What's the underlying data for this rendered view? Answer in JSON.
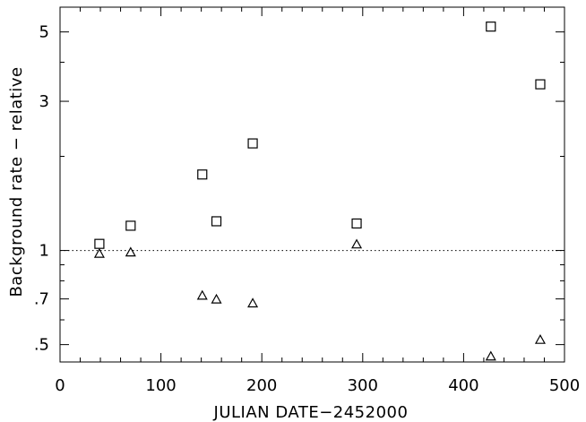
{
  "chart_data": {
    "type": "scatter",
    "title": "",
    "xlabel": "JULIAN DATE−2452000",
    "ylabel": "Background rate − relative",
    "xlim": [
      0,
      500
    ],
    "ylim": [
      0.44,
      6.0
    ],
    "yscale": "log",
    "grid": false,
    "x_ticks": [
      {
        "value": 0,
        "label": "0"
      },
      {
        "value": 100,
        "label": "100"
      },
      {
        "value": 200,
        "label": "200"
      },
      {
        "value": 300,
        "label": "300"
      },
      {
        "value": 400,
        "label": "400"
      },
      {
        "value": 500,
        "label": "500"
      }
    ],
    "y_ticks": [
      {
        "value": 0.5,
        "label": ".5"
      },
      {
        "value": 0.7,
        "label": ".7"
      },
      {
        "value": 1,
        "label": "1"
      },
      {
        "value": 3,
        "label": "3"
      },
      {
        "value": 5,
        "label": "5"
      }
    ],
    "reference_line": {
      "y": 1,
      "style": "dotted"
    },
    "series": [
      {
        "marker": "square",
        "points": [
          {
            "x": 39,
            "y": 1.05
          },
          {
            "x": 70,
            "y": 1.2
          },
          {
            "x": 141,
            "y": 1.75
          },
          {
            "x": 155,
            "y": 1.24
          },
          {
            "x": 191,
            "y": 2.2
          },
          {
            "x": 294,
            "y": 1.22
          },
          {
            "x": 427,
            "y": 5.2
          },
          {
            "x": 476,
            "y": 3.4
          }
        ]
      },
      {
        "marker": "triangle",
        "points": [
          {
            "x": 39,
            "y": 0.98
          },
          {
            "x": 70,
            "y": 0.99
          },
          {
            "x": 141,
            "y": 0.72
          },
          {
            "x": 155,
            "y": 0.7
          },
          {
            "x": 191,
            "y": 0.68
          },
          {
            "x": 294,
            "y": 1.05
          },
          {
            "x": 427,
            "y": 0.46
          },
          {
            "x": 476,
            "y": 0.52
          }
        ]
      }
    ]
  }
}
